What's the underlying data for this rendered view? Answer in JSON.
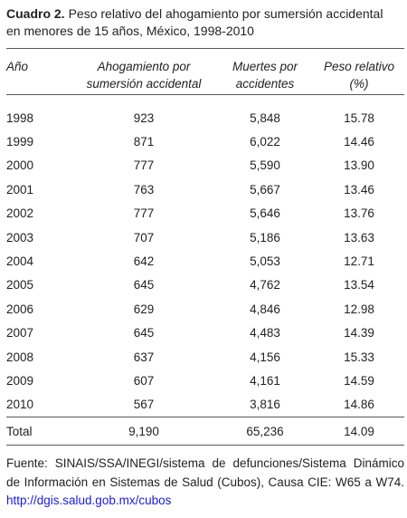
{
  "caption": {
    "label": "Cuadro 2.",
    "line1": "Peso relativo del ahogamiento por sumersión accidental",
    "line2": "en menores de 15 años, México, 1998-2010"
  },
  "table": {
    "headers": {
      "year": "Año",
      "ahog_1": "Ahogamiento por",
      "ahog_2": "sumersión accidental",
      "muert_1": "Muertes por",
      "muert_2": "accidentes",
      "peso_1": "Peso relativo",
      "peso_2": "(%)"
    },
    "rows": [
      {
        "year": "1998",
        "ahog": "923",
        "muert": "5,848",
        "peso": "15.78"
      },
      {
        "year": "1999",
        "ahog": "871",
        "muert": "6,022",
        "peso": "14.46"
      },
      {
        "year": "2000",
        "ahog": "777",
        "muert": "5,590",
        "peso": "13.90"
      },
      {
        "year": "2001",
        "ahog": "763",
        "muert": "5,667",
        "peso": "13.46"
      },
      {
        "year": "2002",
        "ahog": "777",
        "muert": "5,646",
        "peso": "13.76"
      },
      {
        "year": "2003",
        "ahog": "707",
        "muert": "5,186",
        "peso": "13.63"
      },
      {
        "year": "2004",
        "ahog": "642",
        "muert": "5,053",
        "peso": "12.71"
      },
      {
        "year": "2005",
        "ahog": "645",
        "muert": "4,762",
        "peso": "13.54"
      },
      {
        "year": "2006",
        "ahog": "629",
        "muert": "4,846",
        "peso": "12.98"
      },
      {
        "year": "2007",
        "ahog": "645",
        "muert": "4,483",
        "peso": "14.39"
      },
      {
        "year": "2008",
        "ahog": "637",
        "muert": "4,156",
        "peso": "15.33"
      },
      {
        "year": "2009",
        "ahog": "607",
        "muert": "4,161",
        "peso": "14.59"
      },
      {
        "year": "2010",
        "ahog": "567",
        "muert": "3,816",
        "peso": "14.86"
      }
    ],
    "total": {
      "label": "Total",
      "ahog": "9,190",
      "muert": "65,236",
      "peso": "14.09"
    }
  },
  "footer": {
    "text": "Fuente: SINAIS/SSA/INEGI/sistema de defunciones/Sistema Dinámico de Información en Sistemas de Salud (Cubos), Causa CIE: W65 a W74.",
    "link": "http://dgis.salud.gob.mx/cubos"
  },
  "colors": {
    "text": "#222222",
    "rule": "#5a5a5a",
    "link": "#1a1adc"
  }
}
